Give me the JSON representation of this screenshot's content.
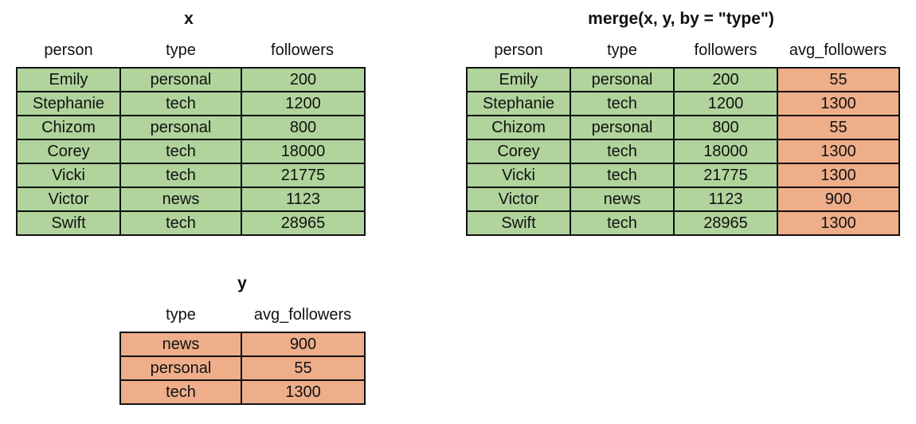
{
  "x_table": {
    "title": "x",
    "headers": [
      "person",
      "type",
      "followers"
    ],
    "rows": [
      [
        "Emily",
        "personal",
        "200"
      ],
      [
        "Stephanie",
        "tech",
        "1200"
      ],
      [
        "Chizom",
        "personal",
        "800"
      ],
      [
        "Corey",
        "tech",
        "18000"
      ],
      [
        "Vicki",
        "tech",
        "21775"
      ],
      [
        "Victor",
        "news",
        "1123"
      ],
      [
        "Swift",
        "tech",
        "28965"
      ]
    ]
  },
  "y_table": {
    "title": "y",
    "headers": [
      "type",
      "avg_followers"
    ],
    "rows": [
      [
        "news",
        "900"
      ],
      [
        "personal",
        "55"
      ],
      [
        "tech",
        "1300"
      ]
    ]
  },
  "merge_table": {
    "title": "merge(x, y, by = \"type\")",
    "headers": [
      "person",
      "type",
      "followers",
      "avg_followers"
    ],
    "rows": [
      [
        "Emily",
        "personal",
        "200",
        "55"
      ],
      [
        "Stephanie",
        "tech",
        "1200",
        "1300"
      ],
      [
        "Chizom",
        "personal",
        "800",
        "55"
      ],
      [
        "Corey",
        "tech",
        "18000",
        "1300"
      ],
      [
        "Vicki",
        "tech",
        "21775",
        "1300"
      ],
      [
        "Victor",
        "news",
        "1123",
        "900"
      ],
      [
        "Swift",
        "tech",
        "28965",
        "1300"
      ]
    ]
  },
  "colors": {
    "x_fill": "#b0d49c",
    "y_fill": "#eeae8a"
  }
}
